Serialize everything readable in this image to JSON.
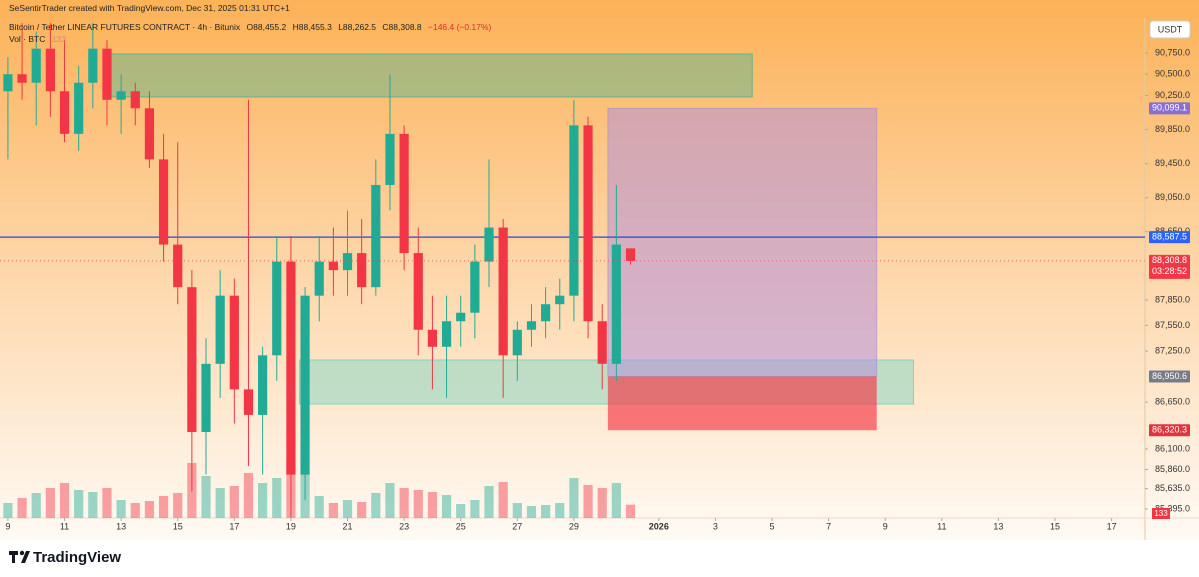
{
  "header": {
    "credit": "SeSentirTrader created with TradingView.com, Dec 31, 2025 01:31 UTC+1",
    "symbol": "Bitcoin / Tether LINEAR FUTURES CONTRACT · 4h · Bitunix",
    "open": "O88,455.2",
    "high": "H88,455.3",
    "low": "L88,262.5",
    "close": "C88,308.8",
    "change": "−146.4 (−0.17%)",
    "volume_title": "Vol · BTC",
    "volume_value": "133",
    "currency": "USDT",
    "countdown": "03:28:52"
  },
  "footer": {
    "brand": "TradingView"
  },
  "chart_data": {
    "type": "candlestick",
    "up_color": "#22ab94",
    "down_color": "#f23645",
    "x": [
      9,
      9.5,
      10,
      10.5,
      11,
      11.5,
      12,
      12.5,
      13,
      13.5,
      14,
      14.5,
      15,
      15.5,
      16,
      16.5,
      17,
      17.5,
      18,
      18.5,
      19,
      19.5,
      20,
      20.5,
      21,
      21.5,
      22,
      22.5,
      23,
      23.5,
      24,
      24.5,
      25,
      25.5,
      26,
      26.5,
      27,
      27.5,
      28,
      28.5,
      29,
      29.5,
      30,
      30.5,
      31
    ],
    "open": [
      90300,
      90500,
      90400,
      90800,
      90300,
      89800,
      90400,
      90800,
      90200,
      90300,
      90100,
      89500,
      88500,
      88000,
      86300,
      87100,
      87900,
      86800,
      86500,
      87200,
      88300,
      85800,
      87900,
      88300,
      88200,
      88400,
      88000,
      89200,
      89800,
      88400,
      87500,
      87300,
      87600,
      87700,
      88300,
      88700,
      87200,
      87500,
      87600,
      87800,
      87900,
      89900,
      87600,
      87100,
      88455.2
    ],
    "high": [
      90700,
      91100,
      91000,
      91100,
      90900,
      90600,
      91100,
      90900,
      90500,
      90400,
      90300,
      89800,
      89700,
      88200,
      87400,
      88200,
      88100,
      90200,
      87300,
      88600,
      88600,
      88000,
      88600,
      88700,
      88900,
      88800,
      89500,
      90500,
      89900,
      88700,
      87900,
      87900,
      87900,
      88500,
      89500,
      88800,
      87600,
      87800,
      88000,
      88100,
      90200,
      90000,
      87800,
      89200,
      88455.3
    ],
    "low": [
      89500,
      90200,
      89900,
      90000,
      89700,
      89600,
      90100,
      89900,
      89800,
      89900,
      89400,
      88300,
      87800,
      85600,
      85800,
      86700,
      86400,
      85900,
      85800,
      86900,
      85300,
      85500,
      87600,
      87900,
      87900,
      87800,
      87900,
      88900,
      88200,
      87200,
      86800,
      86700,
      87300,
      87400,
      88000,
      86700,
      86900,
      87300,
      87400,
      87500,
      87600,
      87400,
      86800,
      86900,
      88262.5
    ],
    "close": [
      90500,
      90400,
      90800,
      90300,
      89800,
      90400,
      90800,
      90200,
      90300,
      90100,
      89500,
      88500,
      88000,
      86300,
      87100,
      87900,
      86800,
      86500,
      87200,
      88300,
      85800,
      87900,
      88300,
      88200,
      88400,
      88000,
      89200,
      89800,
      88400,
      87500,
      87300,
      87600,
      87700,
      88300,
      88700,
      87200,
      87500,
      87600,
      87800,
      87900,
      89900,
      87600,
      87100,
      88500,
      88308.8
    ],
    "volume": [
      150,
      200,
      250,
      300,
      350,
      280,
      260,
      300,
      180,
      150,
      170,
      220,
      250,
      550,
      420,
      300,
      320,
      450,
      350,
      400,
      580,
      450,
      220,
      150,
      180,
      160,
      250,
      350,
      300,
      280,
      260,
      230,
      140,
      180,
      320,
      360,
      150,
      120,
      130,
      150,
      400,
      330,
      300,
      350,
      133
    ],
    "vlim": [
      0,
      5000
    ],
    "xlim": [
      8.72,
      49.18
    ],
    "ylim": [
      85290,
      91160
    ],
    "xticks": [
      9,
      11,
      13,
      15,
      17,
      19,
      21,
      23,
      25,
      27,
      29,
      {
        "value": 32,
        "label": "2026"
      },
      {
        "value": 34,
        "label": "3"
      },
      {
        "value": 36,
        "label": "5"
      },
      {
        "value": 38,
        "label": "7"
      },
      {
        "value": 40,
        "label": "9"
      },
      {
        "value": 42,
        "label": "11"
      },
      {
        "value": 44,
        "label": "13"
      },
      {
        "value": 46,
        "label": "15"
      },
      {
        "value": 48,
        "label": "17"
      }
    ],
    "yticks": [
      {
        "value": 90750,
        "label": "90,750.0"
      },
      {
        "value": 90500,
        "label": "90,500.0"
      },
      {
        "value": 90250,
        "label": "90,250.0"
      },
      {
        "value": 89850,
        "label": "89,850.0"
      },
      {
        "value": 89450,
        "label": "89,450.0"
      },
      {
        "value": 89050,
        "label": "89,050.0"
      },
      {
        "value": 88650,
        "label": "88,650.0"
      },
      {
        "value": 87850,
        "label": "87,850.0"
      },
      {
        "value": 87550,
        "label": "87,550.0"
      },
      {
        "value": 87250,
        "label": "87,250.0"
      },
      {
        "value": 86650,
        "label": "86,650.0"
      },
      {
        "value": 86100,
        "label": "86,100.0"
      },
      {
        "value": 85860,
        "label": "85,860.0"
      },
      {
        "value": 85635,
        "label": "85,635.0"
      },
      {
        "value": 85395,
        "label": "85,395.0"
      }
    ],
    "zones": [
      {
        "top": 90737,
        "bottom": 90233,
        "x0": 12.53,
        "x1": 35.3,
        "color": "#5fb58f"
      },
      {
        "top": 87145,
        "bottom": 86628,
        "x0": 19.3,
        "x1": 41.0,
        "color": "#7fd6c4"
      }
    ],
    "position": {
      "target": 90099.1,
      "entry": 86950.6,
      "stop": 86320.3,
      "x0": 30.2,
      "x1": 39.7,
      "profit_color": "#b58fd8",
      "loss_color": "#f23645"
    },
    "hline": {
      "value": 88587.5,
      "color": "#2947d8"
    },
    "price_labels": [
      {
        "value": 90099.1,
        "label": "90,099.1",
        "color": "#8a6fd1"
      },
      {
        "value": 88587.5,
        "label": "88,587.5",
        "color": "#2962ff"
      },
      {
        "value": 88308.8,
        "label": "88,308.8",
        "color": "#f23645"
      },
      {
        "value": 86950.6,
        "label": "86,950.6",
        "color": "#787b86"
      },
      {
        "value": 86320.3,
        "label": "86,320.3",
        "color": "#e0343f"
      }
    ]
  }
}
